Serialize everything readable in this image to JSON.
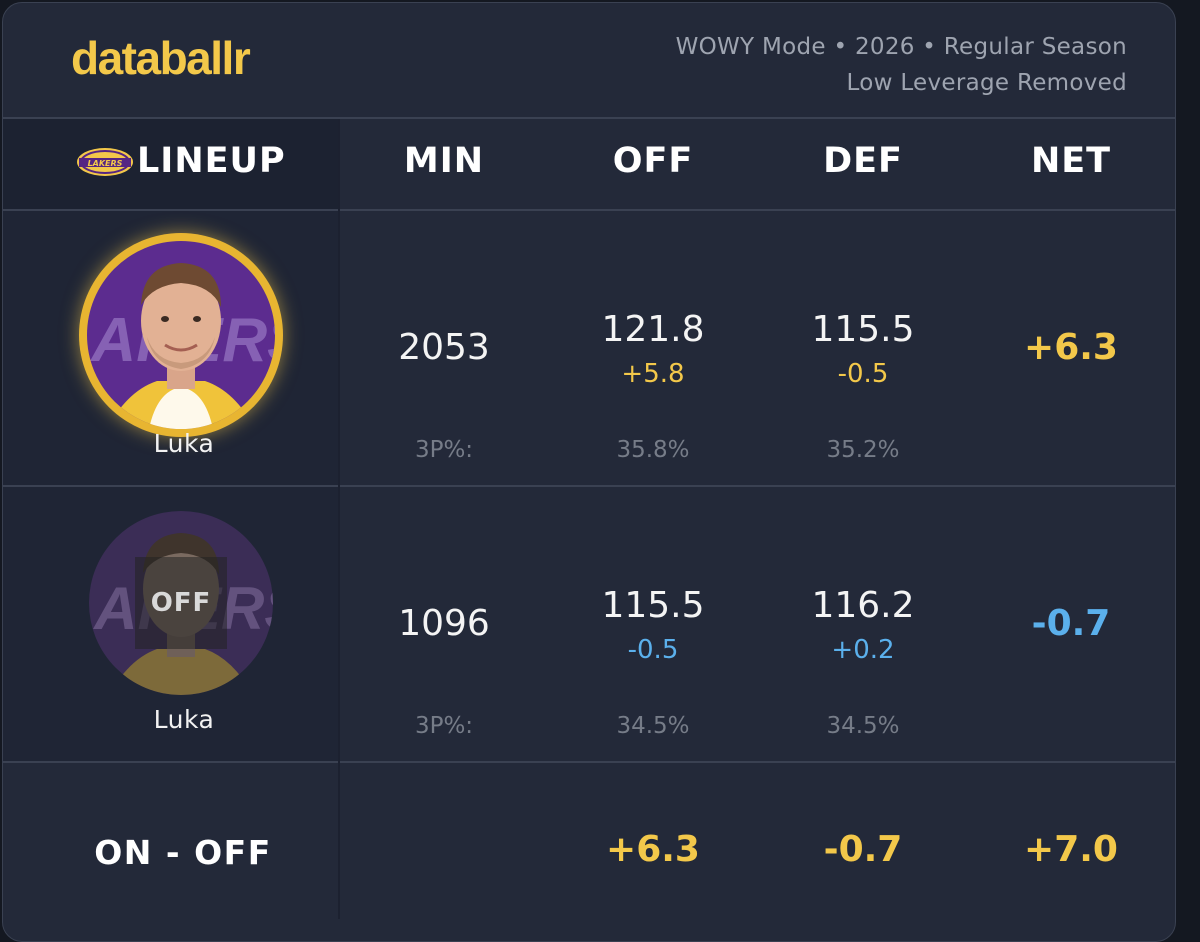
{
  "brand": "databallr",
  "meta": {
    "line1": "WOWY Mode • 2026 • Regular Season",
    "line2": "Low Leverage Removed"
  },
  "columns": {
    "lineup": "LINEUP",
    "min": "MIN",
    "off": "OFF",
    "def": "DEF",
    "net": "NET"
  },
  "team_logo_icon": "lakers-logo-icon",
  "rows": [
    {
      "status": "on",
      "player": "Luka",
      "min": "2053",
      "off": "121.8",
      "off_delta": "+5.8",
      "def": "115.5",
      "def_delta": "-0.5",
      "net": "+6.3",
      "threep_label": "3P%:",
      "off_3p": "35.8%",
      "def_3p": "35.2%"
    },
    {
      "status": "off",
      "badge": "OFF",
      "player": "Luka",
      "min": "1096",
      "off": "115.5",
      "off_delta": "-0.5",
      "def": "116.2",
      "def_delta": "+0.2",
      "net": "-0.7",
      "threep_label": "3P%:",
      "off_3p": "34.5%",
      "def_3p": "34.5%"
    }
  ],
  "on_off": {
    "label": "ON - OFF",
    "off": "+6.3",
    "def": "-0.7",
    "net": "+7.0"
  },
  "colors": {
    "accent_gold": "#f3c84a",
    "accent_blue": "#5bb0ec",
    "background": "#232939",
    "lakers_purple": "#552583"
  }
}
